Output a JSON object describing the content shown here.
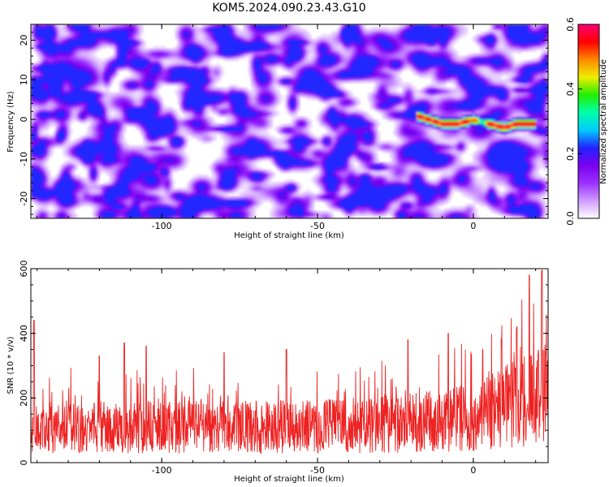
{
  "title": "KOM5.2024.090.23.43.G10",
  "chart_data": [
    {
      "type": "heatmap",
      "xlabel": "Height of straight line (km)",
      "ylabel": "Frequency (Hz)",
      "xlim": [
        -142,
        24
      ],
      "ylim": [
        -25,
        24
      ],
      "x_ticks": [
        -100,
        -50,
        0
      ],
      "y_ticks": [
        -20,
        -10,
        0,
        10,
        20
      ],
      "colorbar": {
        "label": "Normalized spectral amplitude",
        "range": [
          0,
          0.6
        ],
        "ticks": [
          "0.0",
          "0.2",
          "0.4",
          "0.6"
        ],
        "colors": [
          "#ffffff",
          "#cf9cff",
          "#9b30ff",
          "#7a00ee",
          "#2222ff",
          "#00ccff",
          "#00ffaa",
          "#22ee00",
          "#eeee00",
          "#ff8800",
          "#ff0000",
          "#ff0077"
        ]
      },
      "signal_track": {
        "points": [
          [
            -18,
            1
          ],
          [
            -14,
            0
          ],
          [
            -10,
            -1
          ],
          [
            -5,
            -1
          ],
          [
            0,
            0
          ],
          [
            5,
            -1
          ],
          [
            10,
            -2
          ],
          [
            14,
            -1
          ],
          [
            20,
            -1
          ]
        ],
        "peak_amplitude": 0.58
      },
      "background_amplitude": [
        0,
        0.22
      ]
    },
    {
      "type": "line",
      "xlabel": "Height of straight line (km)",
      "ylabel": "SNR (10 * v/v)",
      "xlim": [
        -142,
        24
      ],
      "ylim": [
        0,
        600
      ],
      "x_ticks": [
        -100,
        -50,
        0
      ],
      "y_ticks": [
        0,
        200,
        400,
        600
      ],
      "series": [
        {
          "color": "#ee2222",
          "baseline": [
            [
              -142,
              110
            ],
            [
              -100,
              110
            ],
            [
              -50,
              110
            ],
            [
              -20,
              125
            ],
            [
              0,
              140
            ],
            [
              10,
              170
            ],
            [
              24,
              220
            ]
          ],
          "spikes": [
            [
              -141,
              440
            ],
            [
              -120,
              330
            ],
            [
              -112,
              370
            ],
            [
              -105,
              360
            ],
            [
              -80,
              340
            ],
            [
              -60,
              350
            ],
            [
              -21,
              380
            ],
            [
              -8,
              400
            ],
            [
              3,
              350
            ],
            [
              14,
              420
            ],
            [
              18,
              580
            ],
            [
              22,
              595
            ]
          ]
        }
      ]
    }
  ]
}
